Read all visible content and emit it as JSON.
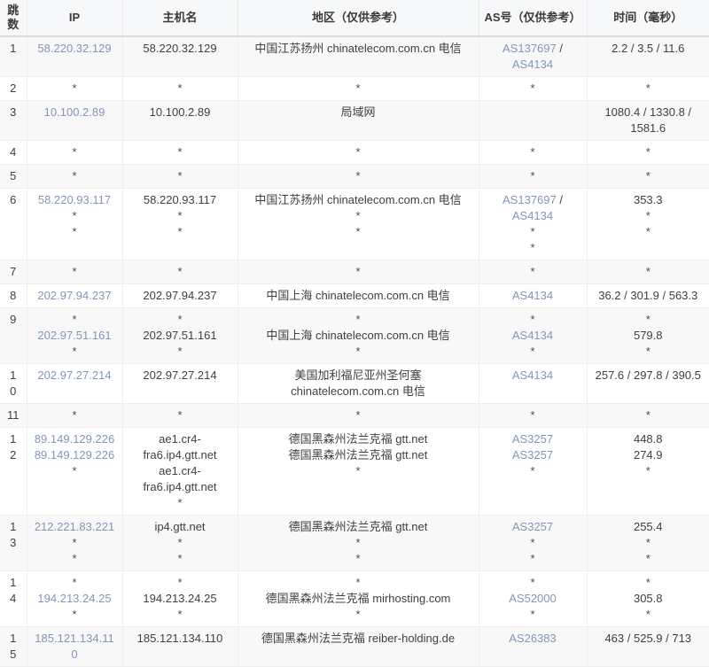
{
  "table": {
    "columns": [
      {
        "key": "hop",
        "label": "跳数"
      },
      {
        "key": "ip",
        "label": "IP"
      },
      {
        "key": "host",
        "label": "主机名"
      },
      {
        "key": "region",
        "label": "地区（仅供参考）"
      },
      {
        "key": "asn",
        "label": "AS号（仅供参考）"
      },
      {
        "key": "time",
        "label": "时间（毫秒）"
      }
    ],
    "rows": [
      {
        "hop": "1",
        "ip": [
          "58.220.32.129"
        ],
        "host": [
          "58.220.32.129"
        ],
        "region": [
          "中国江苏扬州 chinatelecom.com.cn 电信"
        ],
        "asn": [
          [
            "AS137697",
            "AS4134"
          ]
        ],
        "time": [
          "2.2 / 3.5 / 11.6"
        ]
      },
      {
        "hop": "2",
        "ip": [
          "*"
        ],
        "host": [
          "*"
        ],
        "region": [
          "*"
        ],
        "asn": [
          "*"
        ],
        "time": [
          "*"
        ]
      },
      {
        "hop": "3",
        "ip": [
          "10.100.2.89"
        ],
        "host": [
          "10.100.2.89"
        ],
        "region": [
          "局域网"
        ],
        "asn": [],
        "time": [
          "1080.4 / 1330.8 / 1581.6"
        ]
      },
      {
        "hop": "4",
        "ip": [
          "*"
        ],
        "host": [
          "*"
        ],
        "region": [
          "*"
        ],
        "asn": [
          "*"
        ],
        "time": [
          "*"
        ]
      },
      {
        "hop": "5",
        "ip": [
          "*"
        ],
        "host": [
          "*"
        ],
        "region": [
          "*"
        ],
        "asn": [
          "*"
        ],
        "time": [
          "*"
        ]
      },
      {
        "hop": "6",
        "ip": [
          "58.220.93.117",
          "*",
          "*"
        ],
        "host": [
          "58.220.93.117",
          "*",
          "*"
        ],
        "region": [
          "中国江苏扬州 chinatelecom.com.cn 电信",
          "*",
          "*"
        ],
        "asn": [
          [
            "AS137697",
            "AS4134"
          ],
          "*",
          "*"
        ],
        "time": [
          "353.3",
          "*",
          "*"
        ]
      },
      {
        "hop": "7",
        "ip": [
          "*"
        ],
        "host": [
          "*"
        ],
        "region": [
          "*"
        ],
        "asn": [
          "*"
        ],
        "time": [
          "*"
        ]
      },
      {
        "hop": "8",
        "ip": [
          "202.97.94.237"
        ],
        "host": [
          "202.97.94.237"
        ],
        "region": [
          "中国上海 chinatelecom.com.cn 电信"
        ],
        "asn": [
          [
            "AS4134"
          ]
        ],
        "time": [
          "36.2 / 301.9 / 563.3"
        ]
      },
      {
        "hop": "9",
        "ip": [
          "*",
          "202.97.51.161",
          "*"
        ],
        "host": [
          "*",
          "202.97.51.161",
          "*"
        ],
        "region": [
          "*",
          "中国上海 chinatelecom.com.cn 电信",
          "*"
        ],
        "asn": [
          "*",
          [
            "AS4134"
          ],
          "*"
        ],
        "time": [
          "*",
          "579.8",
          "*"
        ]
      },
      {
        "hop": "10",
        "ip": [
          "202.97.27.214"
        ],
        "host": [
          "202.97.27.214"
        ],
        "region": [
          "美国加利福尼亚州圣何塞 chinatelecom.com.cn 电信"
        ],
        "asn": [
          [
            "AS4134"
          ]
        ],
        "time": [
          "257.6 / 297.8 / 390.5"
        ]
      },
      {
        "hop": "11",
        "ip": [
          "*"
        ],
        "host": [
          "*"
        ],
        "region": [
          "*"
        ],
        "asn": [
          "*"
        ],
        "time": [
          "*"
        ]
      },
      {
        "hop": "12",
        "ip": [
          "89.149.129.226",
          "89.149.129.226",
          "*"
        ],
        "host": [
          "ae1.cr4-fra6.ip4.gtt.net",
          "ae1.cr4-fra6.ip4.gtt.net",
          "*"
        ],
        "region": [
          "德国黑森州法兰克福 gtt.net",
          "德国黑森州法兰克福 gtt.net",
          "*"
        ],
        "asn": [
          [
            "AS3257"
          ],
          [
            "AS3257"
          ],
          "*"
        ],
        "time": [
          "448.8",
          "274.9",
          "*"
        ]
      },
      {
        "hop": "13",
        "ip": [
          "212.221.83.221",
          "*",
          "*"
        ],
        "host": [
          "ip4.gtt.net",
          "*",
          "*"
        ],
        "region": [
          "德国黑森州法兰克福 gtt.net",
          "*",
          "*"
        ],
        "asn": [
          [
            "AS3257"
          ],
          "*",
          "*"
        ],
        "time": [
          "255.4",
          "*",
          "*"
        ]
      },
      {
        "hop": "14",
        "ip": [
          "*",
          "194.213.24.25",
          "*"
        ],
        "host": [
          "*",
          "194.213.24.25",
          "*"
        ],
        "region": [
          "*",
          "德国黑森州法兰克福 mirhosting.com",
          "*"
        ],
        "asn": [
          "*",
          [
            "AS52000"
          ],
          "*"
        ],
        "time": [
          "*",
          "305.8",
          "*"
        ]
      },
      {
        "hop": "15",
        "ip": [
          "185.121.134.110"
        ],
        "host": [
          "185.121.134.110"
        ],
        "region": [
          "德国黑森州法兰克福 reiber-holding.de"
        ],
        "asn": [
          [
            "AS26383"
          ]
        ],
        "time": [
          "463 / 525.9 / 713"
        ]
      }
    ]
  },
  "colors": {
    "link": "#8296ba",
    "text": "#404040",
    "stripe": "#f8f8f9",
    "border": "#eeeeee",
    "header_divider": "#dddddd"
  }
}
